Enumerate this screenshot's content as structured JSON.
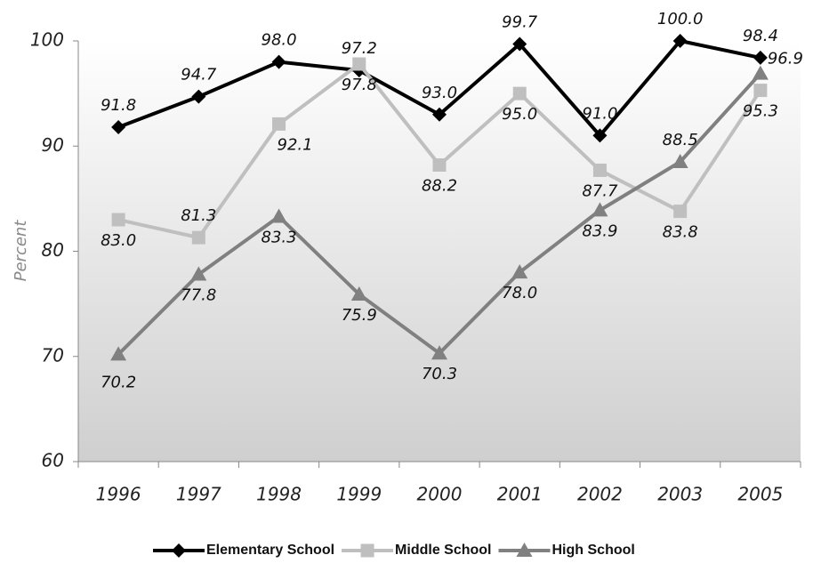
{
  "chart_data": {
    "type": "line",
    "ylabel": "Percent",
    "categories": [
      "1996",
      "1997",
      "1998",
      "1999",
      "2000",
      "2001",
      "2002",
      "2003",
      "2005"
    ],
    "ylim": [
      60,
      100
    ],
    "yticks": [
      60,
      70,
      80,
      90,
      100
    ],
    "legend": "bottom",
    "series": [
      {
        "name": "Elementary School",
        "color": "#000000",
        "marker": "diamond",
        "values": [
          91.8,
          94.7,
          98.0,
          97.2,
          93.0,
          99.7,
          91.0,
          100.0,
          98.4
        ],
        "value_labels": [
          "91.8",
          "94.7",
          "98.0",
          "97.2",
          "93.0",
          "99.7",
          "91.0",
          "100.0",
          "98.4"
        ]
      },
      {
        "name": "Middle School",
        "color": "#bfbfbf",
        "marker": "square",
        "values": [
          83.0,
          81.3,
          92.1,
          97.8,
          88.2,
          95.0,
          87.7,
          83.8,
          95.3
        ],
        "value_labels": [
          "83.0",
          "81.3",
          "92.1",
          "97.8",
          "88.2",
          "95.0",
          "87.7",
          "83.8",
          "95.3"
        ]
      },
      {
        "name": "High School",
        "color": "#808080",
        "marker": "triangle",
        "values": [
          70.2,
          77.8,
          83.3,
          75.9,
          70.3,
          78.0,
          83.9,
          88.5,
          96.9
        ],
        "value_labels": [
          "70.2",
          "77.8",
          "83.3",
          "75.9",
          "70.3",
          "78.0",
          "83.9",
          "88.5",
          "96.9"
        ]
      }
    ]
  }
}
